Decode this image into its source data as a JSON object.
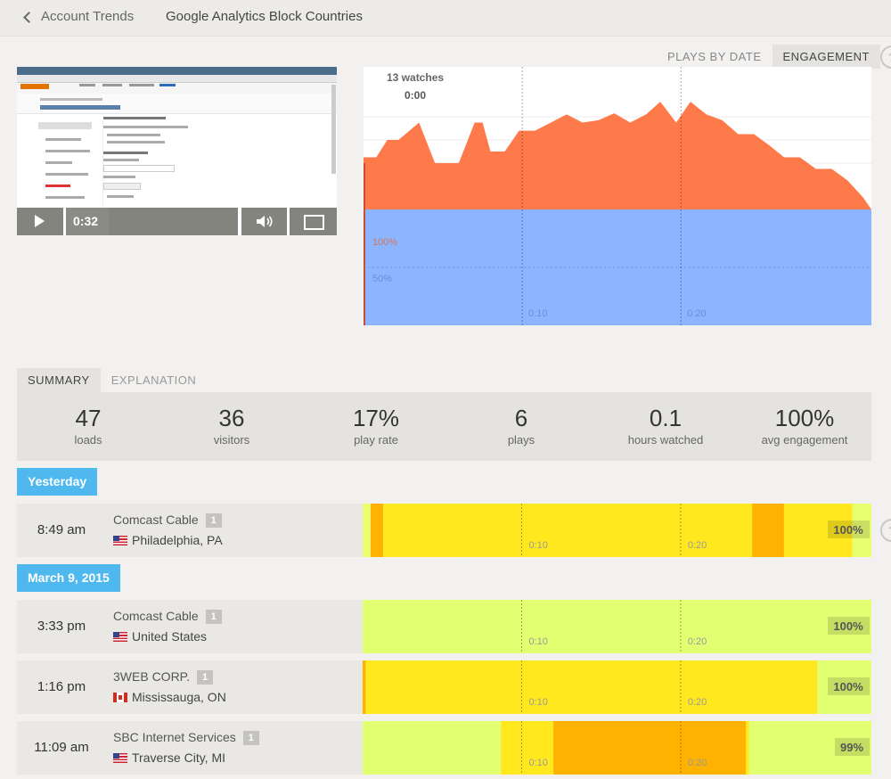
{
  "header": {
    "back_label": "Account Trends",
    "title": "Google Analytics Block Countries"
  },
  "view_tabs": [
    {
      "label": "PLAYS BY DATE",
      "active": false
    },
    {
      "label": "ENGAGEMENT",
      "active": true
    }
  ],
  "help_glyph": "?",
  "player": {
    "time": "0:32",
    "progress_fraction": 0.25,
    "icons": [
      "play-icon",
      "volume-icon",
      "fullscreen-icon"
    ]
  },
  "engagement_chart": {
    "watches_label": "13 watches",
    "time_label": "0:00",
    "pct_labels": [
      "100%",
      "50%"
    ],
    "tick_labels": [
      "0:10",
      "0:20"
    ],
    "colors": {
      "rewatch": "#ff7a4a",
      "watched": "#8cb4ff"
    }
  },
  "chart_data": {
    "type": "area",
    "x_unit": "seconds",
    "xlim": [
      0,
      32
    ],
    "x": [
      0,
      0.8,
      1.5,
      2.2,
      3.5,
      4.5,
      5.0,
      6.0,
      7.0,
      7.5,
      8.0,
      8.9,
      9.8,
      10.8,
      11.8,
      12.8,
      13.8,
      14.8,
      15.8,
      16.8,
      17.8,
      18.7,
      19.7,
      20.6,
      21.6,
      22.6,
      23.6,
      24.6,
      25.6,
      26.5,
      27.5,
      28.5,
      29.5,
      30.5,
      31.5,
      32.0
    ],
    "series": [
      {
        "values": [
          145,
          145,
          160,
          160,
          175,
          140,
          140,
          140,
          175,
          175,
          150,
          150,
          168,
          168,
          175,
          182,
          175,
          177,
          183,
          175,
          182,
          193,
          175,
          193,
          182,
          177,
          165,
          165,
          155,
          145,
          145,
          135,
          135,
          125,
          110,
          100
        ]
      },
      {
        "values": [
          100,
          100,
          100,
          100,
          100,
          100,
          100,
          100,
          100,
          100,
          100,
          100,
          100,
          100,
          100,
          100,
          100,
          100,
          100,
          100,
          100,
          100,
          100,
          100,
          100,
          100,
          100,
          100,
          100,
          100,
          100,
          100,
          100,
          100,
          100,
          100
        ]
      }
    ]
  },
  "summary_tabs": [
    {
      "label": "SUMMARY",
      "active": true
    },
    {
      "label": "EXPLANATION",
      "active": false
    }
  ],
  "stats": [
    {
      "value": "47",
      "label": "loads"
    },
    {
      "value": "36",
      "label": "visitors"
    },
    {
      "value": "17%",
      "label": "play rate"
    },
    {
      "value": "6",
      "label": "plays"
    },
    {
      "value": "0.1",
      "label": "hours watched"
    },
    {
      "value": "100%",
      "label": "avg engagement"
    }
  ],
  "groups": [
    {
      "date": "Yesterday",
      "sessions": [
        {
          "time": "8:49 am",
          "isp": "Comcast Cable",
          "count": "1",
          "flag": "us",
          "location": "Philadelphia, PA",
          "engagement": "100%",
          "segments": [
            [
              0,
              0.5,
              "#e8ff70"
            ],
            [
              0.5,
              1.3,
              "#ffb300"
            ],
            [
              1.3,
              6.7,
              "#ffe91e"
            ],
            [
              6.7,
              24.5,
              "#ffe91e"
            ],
            [
              24.5,
              26.5,
              "#ffb300"
            ],
            [
              26.5,
              30.8,
              "#ffe91e"
            ],
            [
              30.8,
              32,
              "#e8ff70"
            ]
          ]
        }
      ]
    },
    {
      "date": "March 9, 2015",
      "sessions": [
        {
          "time": "3:33 pm",
          "isp": "Comcast Cable",
          "count": "1",
          "flag": "us",
          "location": "United States",
          "engagement": "100%",
          "segments": [
            [
              0,
              32,
              "#e2ff72"
            ]
          ]
        },
        {
          "time": "1:16 pm",
          "isp": "3WEB CORP.",
          "count": "1",
          "flag": "ca",
          "location": "Mississauga, ON",
          "engagement": "100%",
          "segments": [
            [
              0,
              0.2,
              "#ffb300"
            ],
            [
              0.2,
              28.6,
              "#ffe91e"
            ],
            [
              28.6,
              32,
              "#e2ff72"
            ]
          ]
        },
        {
          "time": "11:09 am",
          "isp": "SBC Internet Services",
          "count": "1",
          "flag": "us",
          "location": "Traverse City, MI",
          "engagement": "99%",
          "segments": [
            [
              0,
              8.7,
              "#e2ff72"
            ],
            [
              8.7,
              12.0,
              "#ffe91e"
            ],
            [
              12.0,
              24.1,
              "#ffb300"
            ],
            [
              24.1,
              24.3,
              "#ffe91e"
            ],
            [
              24.3,
              32,
              "#e2ff72"
            ]
          ]
        }
      ]
    }
  ]
}
